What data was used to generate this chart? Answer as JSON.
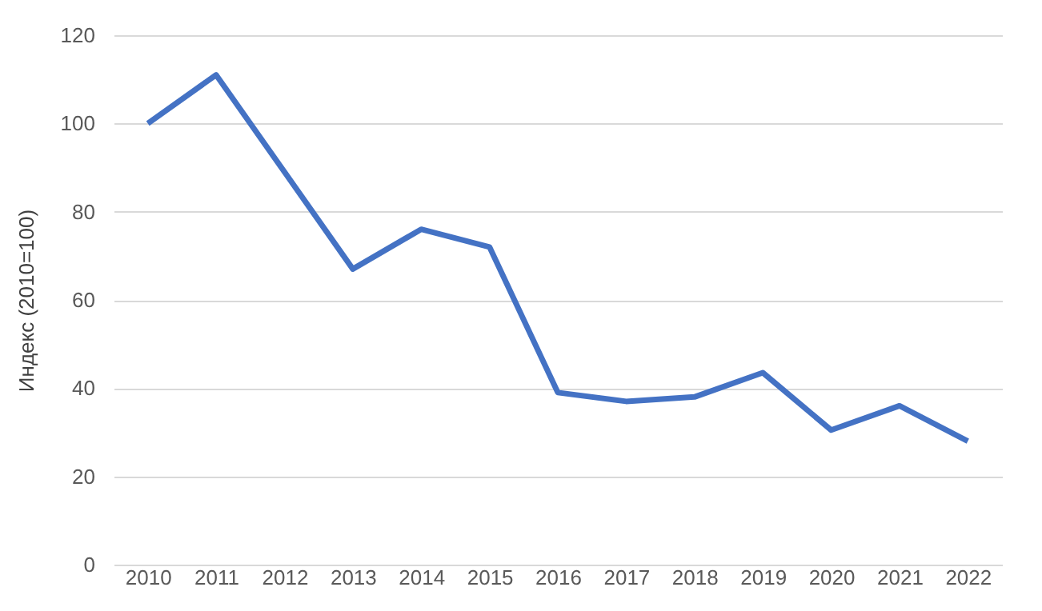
{
  "chart_data": {
    "type": "line",
    "ylabel": "Индекс (2010=100)",
    "categories": [
      "2010",
      "2011",
      "2012",
      "2013",
      "2014",
      "2015",
      "2016",
      "2017",
      "2018",
      "2019",
      "2020",
      "2021",
      "2022"
    ],
    "series": [
      {
        "color": "#4472c4",
        "values": [
          100,
          111,
          89,
          67,
          76,
          72,
          39,
          37,
          38,
          43.5,
          30.5,
          36,
          28
        ]
      }
    ],
    "ylim": [
      0,
      120
    ],
    "yticks": [
      0,
      20,
      40,
      60,
      80,
      100,
      120
    ],
    "grid": "y",
    "legend": false,
    "marker": "none",
    "line_style": "solid"
  }
}
